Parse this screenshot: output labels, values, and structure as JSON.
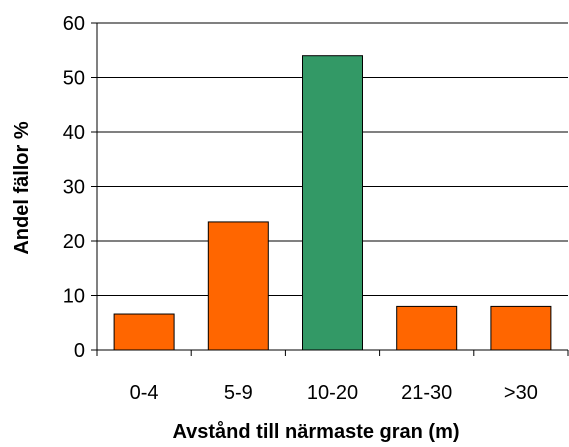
{
  "chart_data": {
    "type": "bar",
    "title": "",
    "xlabel": "Avstånd till närmaste gran (m)",
    "ylabel": "Andel fällor %",
    "categories": [
      "0-4",
      "5-9",
      "10-20",
      "21-30",
      ">30"
    ],
    "values": [
      6.6,
      23.5,
      54.0,
      8.0,
      8.0
    ],
    "bar_colors": [
      "#ff6600",
      "#ff6600",
      "#339966",
      "#ff6600",
      "#ff6600"
    ],
    "ylim": [
      0,
      60
    ],
    "yticks": [
      0,
      10,
      20,
      30,
      40,
      50,
      60
    ],
    "grid": true,
    "legend": "none"
  }
}
